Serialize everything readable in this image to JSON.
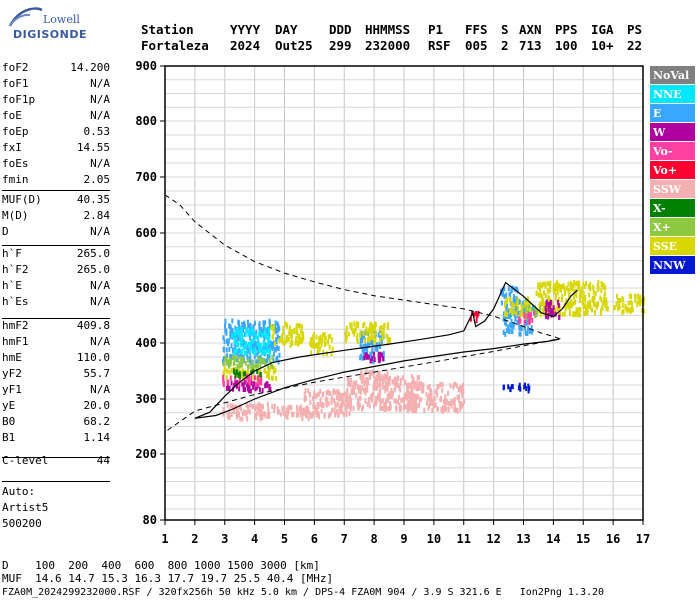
{
  "logo": {
    "line1": "Lowell",
    "line2": "DIGISONDE"
  },
  "header": {
    "labels": [
      "Station",
      "YYYY",
      "DAY",
      "DDD",
      "HHMMSS",
      "P1",
      "FFS",
      "S",
      "AXN",
      "PPS",
      "IGA",
      "PS"
    ],
    "values": [
      "Fortaleza",
      "2024",
      "Out25",
      "299",
      "232000",
      "RSF",
      "005",
      "2",
      "713",
      "100",
      "10+",
      "22"
    ]
  },
  "params": [
    {
      "label": "foF2",
      "value": "14.200"
    },
    {
      "label": "foF1",
      "value": "N/A"
    },
    {
      "label": "foF1p",
      "value": "N/A"
    },
    {
      "label": "foE",
      "value": "N/A"
    },
    {
      "label": "foEp",
      "value": "0.53"
    },
    {
      "label": "fxI",
      "value": "14.55"
    },
    {
      "label": "foEs",
      "value": "N/A"
    },
    {
      "label": "fmin",
      "value": "2.05"
    },
    {
      "label": "MUF(D)",
      "value": "40.35"
    },
    {
      "label": "M(D)",
      "value": "2.84"
    },
    {
      "label": "D",
      "value": "N/A"
    },
    {
      "label": "h`F",
      "value": "265.0"
    },
    {
      "label": "h`F2",
      "value": "265.0"
    },
    {
      "label": "h`E",
      "value": "N/A"
    },
    {
      "label": "h`Es",
      "value": "N/A"
    },
    {
      "label": "hmF2",
      "value": "409.8"
    },
    {
      "label": "hmF1",
      "value": "N/A"
    },
    {
      "label": "hmE",
      "value": "110.0"
    },
    {
      "label": "yF2",
      "value": "55.7"
    },
    {
      "label": "yF1",
      "value": "N/A"
    },
    {
      "label": "yE",
      "value": "20.0"
    },
    {
      "label": "B0",
      "value": "68.2"
    },
    {
      "label": "B1",
      "value": "1.14"
    },
    {
      "label": "C-level",
      "value": "44"
    }
  ],
  "autoscale": [
    "Auto:",
    "Artist5",
    "500200"
  ],
  "bottom": {
    "d_row": "D    100  200  400  600  800 1000 1500 3000 [km]",
    "muf_row": "MUF  14.6 14.7 15.3 16.3 17.7 19.7 25.5 40.4 [MHz]",
    "file_row": "FZA0M_2024299232000.RSF / 320fx256h 50 kHz 5.0 km / DPS-4 FZA0M 904 / 3.9 S 321.6 E   Ion2Png 1.3.20"
  },
  "legend": [
    {
      "label": "NoVal",
      "color": "#808080"
    },
    {
      "label": "NNE",
      "color": "#00e8ff"
    },
    {
      "label": "E",
      "color": "#3aa6ff"
    },
    {
      "label": "W",
      "color": "#b000a0"
    },
    {
      "label": "Vo-",
      "color": "#ff40a0"
    },
    {
      "label": "Vo+",
      "color": "#ff0030"
    },
    {
      "label": "SSW",
      "color": "#f4b0b0"
    },
    {
      "label": "X-",
      "color": "#008000"
    },
    {
      "label": "X+",
      "color": "#8cc840"
    },
    {
      "label": "SSE",
      "color": "#d8d800"
    },
    {
      "label": "NNW",
      "color": "#0018d0"
    }
  ],
  "chart_data": {
    "type": "scatter",
    "xlim": [
      1,
      17
    ],
    "ylim": [
      80,
      900
    ],
    "xticks": [
      "1",
      "2",
      "3",
      "4",
      "5",
      "6",
      "7",
      "8",
      "9",
      "10",
      "11",
      "12",
      "13",
      "14",
      "15",
      "16",
      "17"
    ],
    "yticks": [
      "80",
      "200",
      "300",
      "400",
      "500",
      "600",
      "700",
      "800",
      "900"
    ],
    "grid": true,
    "series": [
      {
        "name": "SSW",
        "color": "#f4b0b0",
        "clusters": [
          [
            2.9,
            4.8,
            268,
            295
          ],
          [
            4.8,
            5.8,
            268,
            290
          ],
          [
            5.6,
            7.2,
            272,
            320
          ],
          [
            7.0,
            9.5,
            285,
            345
          ],
          [
            7.5,
            8.5,
            330,
            355
          ],
          [
            9.0,
            11.0,
            282,
            332
          ]
        ]
      },
      {
        "name": "E",
        "color": "#3aa6ff",
        "clusters": [
          [
            2.9,
            4.8,
            370,
            445
          ],
          [
            7.5,
            8.3,
            370,
            430
          ],
          [
            12.3,
            13.3,
            420,
            480
          ],
          [
            12.2,
            12.8,
            470,
            505
          ]
        ]
      },
      {
        "name": "NNE",
        "color": "#00e8ff",
        "clusters": [
          [
            3.2,
            4.5,
            385,
            430
          ]
        ]
      },
      {
        "name": "SSE",
        "color": "#d8d800",
        "clusters": [
          [
            4.5,
            5.6,
            400,
            440
          ],
          [
            2.9,
            4.7,
            340,
            360
          ],
          [
            7.0,
            8.5,
            405,
            440
          ],
          [
            5.8,
            6.6,
            385,
            420
          ],
          [
            13.4,
            15.8,
            455,
            515
          ],
          [
            16.0,
            17.0,
            460,
            490
          ],
          [
            12.3,
            13.2,
            455,
            485
          ]
        ]
      },
      {
        "name": "W",
        "color": "#b000a0",
        "clusters": [
          [
            3.0,
            4.5,
            318,
            335
          ],
          [
            7.6,
            8.3,
            370,
            385
          ],
          [
            13.7,
            14.2,
            450,
            480
          ]
        ]
      },
      {
        "name": "X+",
        "color": "#8cc840",
        "clusters": [
          [
            2.9,
            4.6,
            360,
            380
          ],
          [
            13.0,
            13.6,
            450,
            470
          ]
        ]
      },
      {
        "name": "Vo-",
        "color": "#ff40a0",
        "clusters": [
          [
            2.9,
            4.2,
            330,
            345
          ],
          [
            12.8,
            13.4,
            440,
            460
          ]
        ]
      },
      {
        "name": "NNW",
        "color": "#0018d0",
        "clusters": [
          [
            12.3,
            13.2,
            318,
            330
          ]
        ]
      },
      {
        "name": "X-",
        "color": "#008000",
        "clusters": [
          [
            3.2,
            4.2,
            345,
            355
          ]
        ]
      },
      {
        "name": "Vo+",
        "color": "#ff0030",
        "clusters": [
          [
            11.2,
            11.5,
            445,
            460
          ]
        ]
      }
    ],
    "lines": {
      "trace_o": [
        [
          2.0,
          265
        ],
        [
          2.5,
          276
        ],
        [
          3.0,
          305
        ],
        [
          3.5,
          330
        ],
        [
          4.0,
          350
        ],
        [
          4.6,
          365
        ],
        [
          5.5,
          375
        ],
        [
          7.0,
          387
        ],
        [
          8.5,
          398
        ],
        [
          9.5,
          406
        ],
        [
          10.5,
          415
        ],
        [
          11.0,
          422
        ],
        [
          11.3,
          455
        ],
        [
          11.4,
          430
        ],
        [
          11.7,
          440
        ],
        [
          12.0,
          462
        ],
        [
          12.4,
          510
        ],
        [
          13.0,
          485
        ],
        [
          13.6,
          455
        ],
        [
          14.0,
          448
        ],
        [
          14.3,
          462
        ],
        [
          14.6,
          486
        ],
        [
          14.8,
          496
        ]
      ],
      "trace_x": [
        [
          2.0,
          265
        ],
        [
          2.7,
          270
        ],
        [
          3.2,
          280
        ],
        [
          4.0,
          300
        ],
        [
          5.0,
          320
        ],
        [
          6.0,
          335
        ],
        [
          7.0,
          348
        ],
        [
          8.0,
          358
        ],
        [
          9.0,
          368
        ],
        [
          10.0,
          376
        ],
        [
          11.0,
          384
        ],
        [
          12.0,
          390
        ],
        [
          13.0,
          398
        ],
        [
          13.8,
          403
        ],
        [
          14.2,
          407
        ]
      ],
      "profile": [
        [
          1.0,
          668
        ],
        [
          1.5,
          650
        ],
        [
          2.0,
          620
        ],
        [
          3.0,
          578
        ],
        [
          4.0,
          548
        ],
        [
          5.0,
          527
        ],
        [
          6.0,
          511
        ],
        [
          7.0,
          497
        ],
        [
          8.0,
          486
        ],
        [
          9.0,
          478
        ],
        [
          10.0,
          470
        ],
        [
          11.0,
          462
        ],
        [
          12.0,
          449
        ],
        [
          13.0,
          430
        ],
        [
          13.6,
          418
        ],
        [
          14.0,
          412
        ],
        [
          14.2,
          408
        ],
        [
          13.5,
          400
        ],
        [
          12.0,
          385
        ],
        [
          10.0,
          366
        ],
        [
          8.0,
          348
        ],
        [
          6.0,
          330
        ],
        [
          4.0,
          308
        ],
        [
          2.0,
          278
        ],
        [
          1.0,
          240
        ]
      ]
    }
  }
}
